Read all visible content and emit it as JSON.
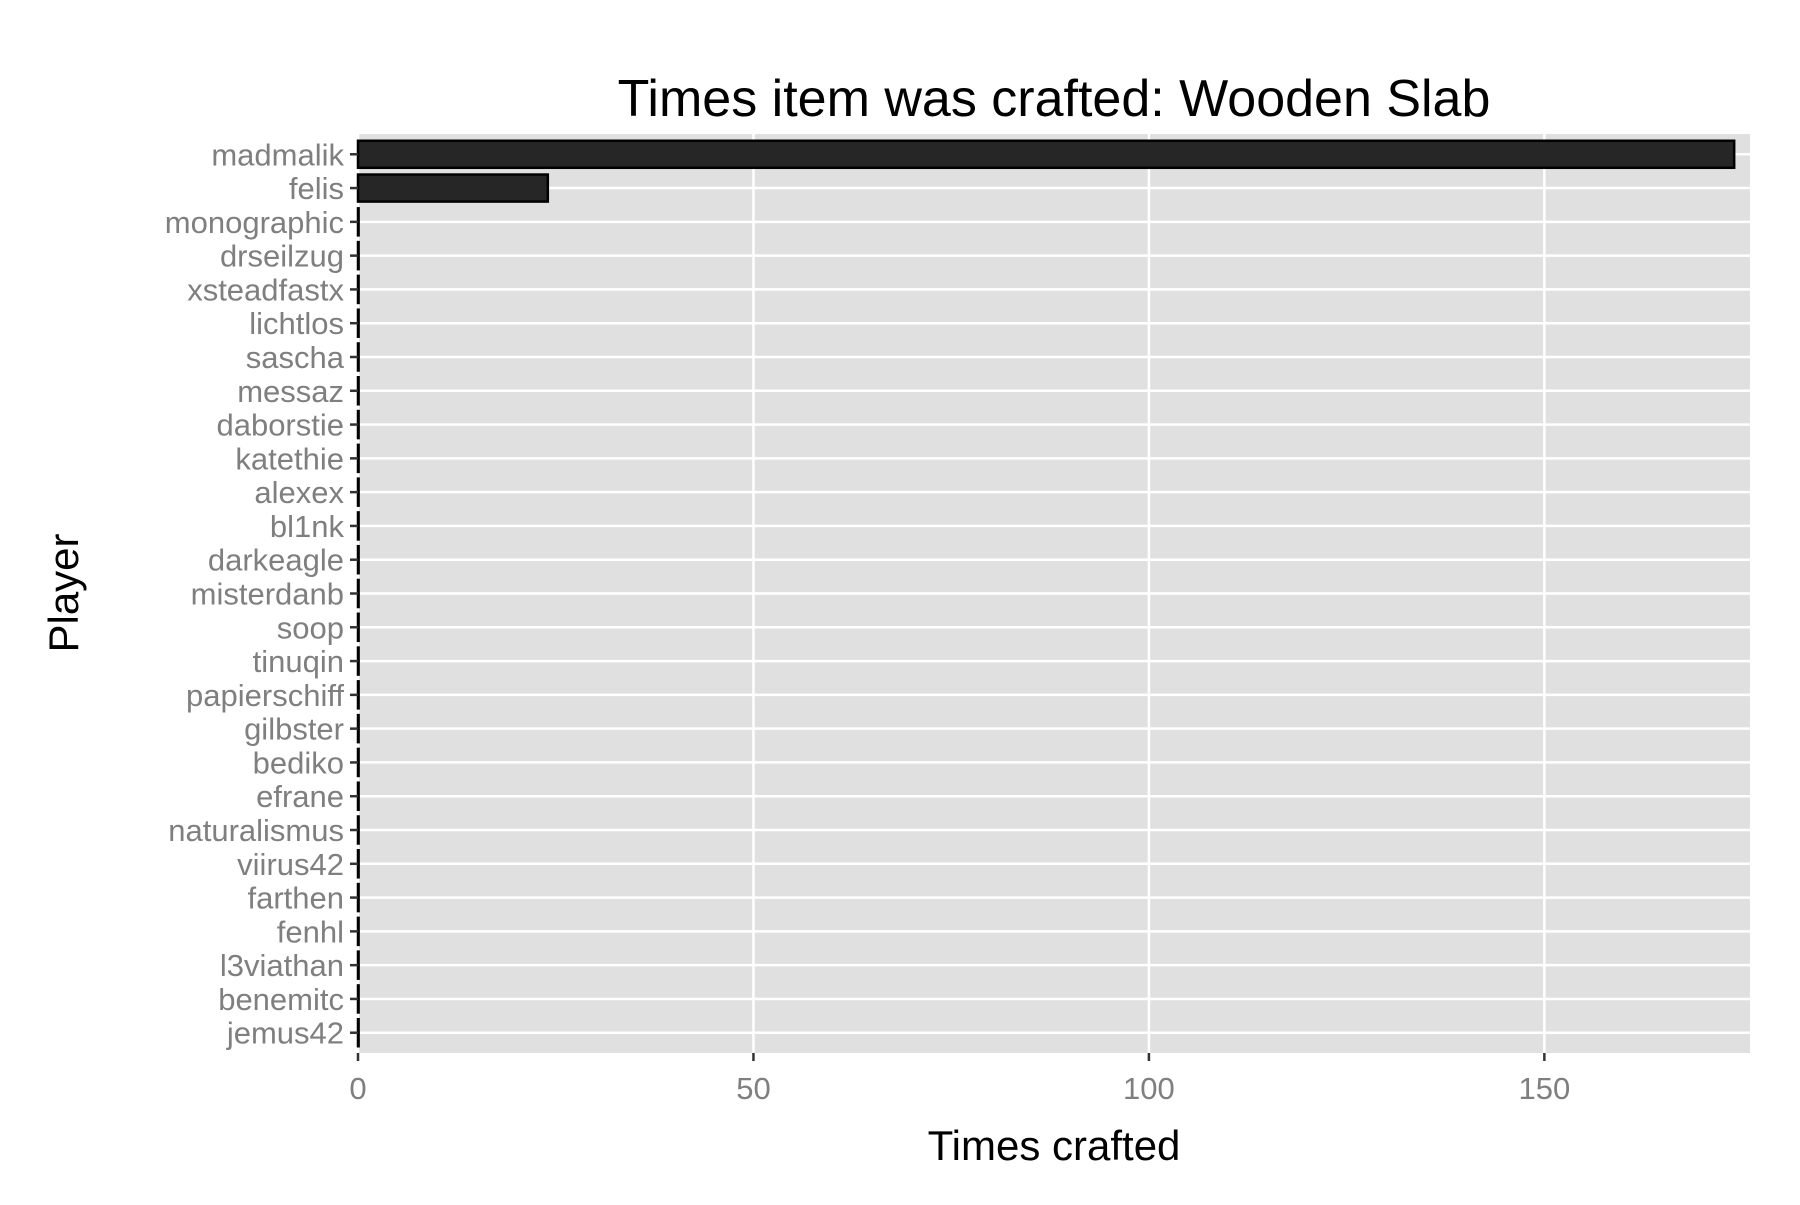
{
  "chart_data": {
    "type": "bar",
    "orientation": "horizontal",
    "title": "Times item was crafted: Wooden Slab",
    "xlabel": "Times crafted",
    "ylabel": "Player",
    "xlim": [
      0,
      176
    ],
    "x_ticks": [
      0,
      50,
      100,
      150
    ],
    "grid": true,
    "legend": "none",
    "categories": [
      "madmalik",
      "felis",
      "monographic",
      "drseilzug",
      "xsteadfastx",
      "lichtlos",
      "sascha",
      "messaz",
      "daborstie",
      "katethie",
      "alexex",
      "bl1nk",
      "darkeagle",
      "misterdanb",
      "soop",
      "tinuqin",
      "papierschiff",
      "gilbster",
      "bediko",
      "efrane",
      "naturalismus",
      "viirus42",
      "farthen",
      "fenhl",
      "l3viathan",
      "benemitc",
      "jemus42"
    ],
    "values": [
      174,
      24,
      0,
      0,
      0,
      0,
      0,
      0,
      0,
      0,
      0,
      0,
      0,
      0,
      0,
      0,
      0,
      0,
      0,
      0,
      0,
      0,
      0,
      0,
      0,
      0,
      0
    ],
    "colors": {
      "panel": "#e0e0e0",
      "grid": "#ffffff",
      "bar_fill": "#262626",
      "bar_stroke": "#000000",
      "tick_label": "#7f7f7f"
    }
  }
}
